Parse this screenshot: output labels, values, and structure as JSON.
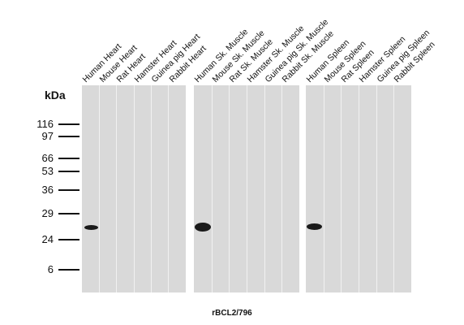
{
  "y_axis_unit": "kDa",
  "molecular_weight_markers": [
    "116",
    "97",
    "66",
    "53",
    "36",
    "29",
    "24",
    "6"
  ],
  "panels": [
    {
      "tissue": "Heart",
      "lanes": [
        "Human Heart",
        "Mouse Heart",
        "Rat Heart",
        "Hamster Heart",
        "Guinea pig Heart",
        "Rabbit Heart"
      ],
      "band_lanes": [
        0
      ]
    },
    {
      "tissue": "Sk. Muscle",
      "lanes": [
        "Human Sk. Muscle",
        "Mouse Sk. Muscle",
        "Rat Sk. Muscle",
        "Hamster Sk. Muscle",
        "Guinea pig Sk. Muscle",
        "Rabbit Sk. Muscle"
      ],
      "band_lanes": [
        0
      ]
    },
    {
      "tissue": "Spleen",
      "lanes": [
        "Human Spleen",
        "Mouse Spleen",
        "Rat Spleen",
        "Hamster Spleen",
        "Guinea pig Spleen",
        "Rabbit Spleen"
      ],
      "band_lanes": [
        0
      ]
    }
  ],
  "antibody_label": "rBCL2/796",
  "colors": {
    "membrane": "#d9d9d9",
    "band": "#1a1a1a",
    "lane_divider": "#f1f1f1"
  }
}
